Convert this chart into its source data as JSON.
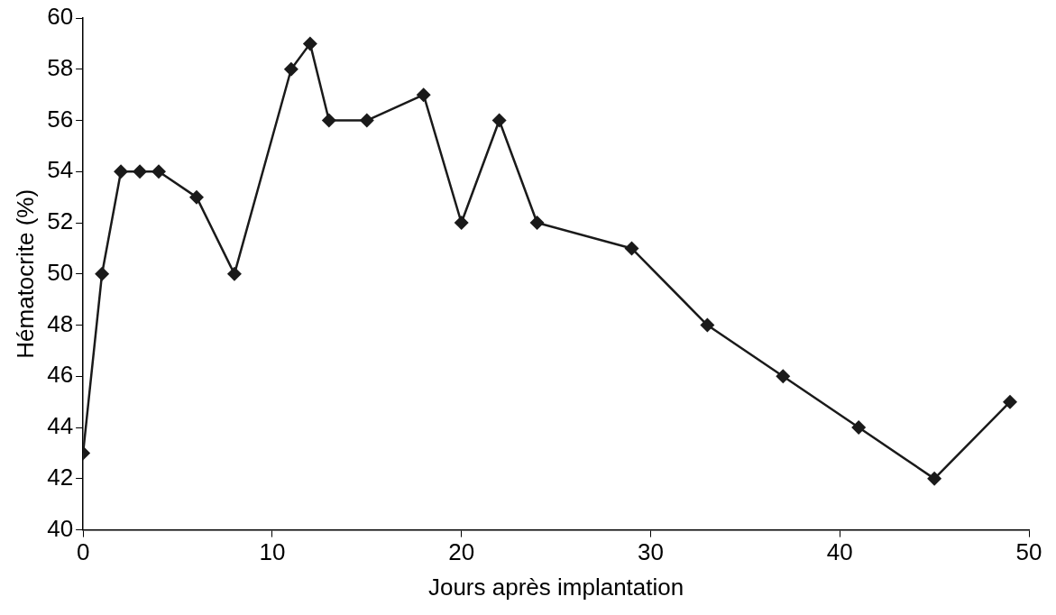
{
  "chart_data": {
    "type": "line",
    "xlabel": "Jours après implantation",
    "ylabel": "Hématocrite (%)",
    "x": [
      0,
      1,
      2,
      3,
      4,
      6,
      8,
      11,
      12,
      13,
      15,
      18,
      20,
      22,
      24,
      29,
      33,
      37,
      41,
      45,
      49
    ],
    "series": [
      {
        "color": "#1a1a1a",
        "values": [
          43,
          50,
          54,
          54,
          54,
          53,
          50,
          58,
          59,
          56,
          56,
          57,
          52,
          56,
          52,
          51,
          48,
          46,
          44,
          42,
          45
        ]
      }
    ],
    "xlim": [
      0,
      50
    ],
    "xticks": [
      0,
      10,
      20,
      30,
      40,
      50
    ],
    "ylim": [
      40,
      60
    ],
    "yticks": [
      40,
      42,
      44,
      46,
      48,
      50,
      52,
      54,
      56,
      58,
      60
    ],
    "grid": false,
    "legend": false,
    "marker": "diamond",
    "line_style": "solid"
  }
}
